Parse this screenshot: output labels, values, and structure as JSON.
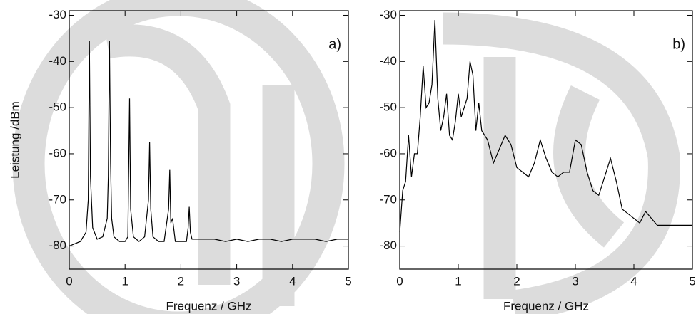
{
  "chart_data": [
    {
      "type": "line",
      "annotation": "a)",
      "xlabel": "Frequenz / GHz",
      "ylabel": "Leistung /dBm",
      "x": [
        0,
        0.1,
        0.2,
        0.3,
        0.34,
        0.36,
        0.38,
        0.42,
        0.5,
        0.6,
        0.68,
        0.7,
        0.72,
        0.74,
        0.76,
        0.8,
        0.9,
        1.0,
        1.05,
        1.08,
        1.1,
        1.15,
        1.25,
        1.35,
        1.42,
        1.44,
        1.46,
        1.5,
        1.6,
        1.7,
        1.78,
        1.8,
        1.82,
        1.85,
        1.9,
        2.0,
        2.1,
        2.13,
        2.15,
        2.17,
        2.2,
        2.4,
        2.6,
        2.8,
        3.0,
        3.2,
        3.4,
        3.6,
        3.8,
        4.0,
        4.2,
        4.4,
        4.6,
        4.8,
        5.0
      ],
      "series": [
        {
          "color": "#000000",
          "values": [
            -80,
            -79.5,
            -79,
            -77,
            -70,
            -35.5,
            -65,
            -76,
            -78.5,
            -78,
            -74,
            -65,
            -35.5,
            -62,
            -74,
            -78,
            -79,
            -79,
            -78,
            -48,
            -72,
            -78,
            -79,
            -78,
            -70,
            -57.5,
            -72,
            -78,
            -79,
            -79,
            -72,
            -63.5,
            -75,
            -74,
            -79,
            -79,
            -79,
            -76,
            -71.5,
            -77,
            -78.5,
            -78.5,
            -78.5,
            -79,
            -78.5,
            -79,
            -78.5,
            -78.5,
            -79,
            -78.5,
            -78.5,
            -78.5,
            -79,
            -78.5,
            -78.5
          ]
        }
      ],
      "xlim": [
        0,
        5
      ],
      "xticks": [
        0,
        1,
        2,
        3,
        4,
        5
      ],
      "ylim": [
        -85,
        -29
      ],
      "yticks": [
        -30,
        -40,
        -50,
        -60,
        -70,
        -80
      ]
    },
    {
      "type": "line",
      "annotation": "b)",
      "xlabel": "Frequenz / GHz",
      "x": [
        0,
        0.05,
        0.1,
        0.15,
        0.2,
        0.25,
        0.3,
        0.35,
        0.4,
        0.45,
        0.5,
        0.55,
        0.6,
        0.65,
        0.7,
        0.75,
        0.8,
        0.85,
        0.9,
        0.95,
        1.0,
        1.05,
        1.1,
        1.15,
        1.2,
        1.25,
        1.3,
        1.35,
        1.4,
        1.5,
        1.6,
        1.7,
        1.8,
        1.9,
        2.0,
        2.1,
        2.2,
        2.3,
        2.4,
        2.5,
        2.6,
        2.7,
        2.8,
        2.9,
        3.0,
        3.1,
        3.2,
        3.3,
        3.4,
        3.5,
        3.6,
        3.7,
        3.8,
        3.9,
        4.0,
        4.1,
        4.2,
        4.3,
        4.4,
        4.6,
        4.8,
        5.0
      ],
      "series": [
        {
          "color": "#000000",
          "values": [
            -77,
            -68,
            -66,
            -56,
            -65,
            -60,
            -60,
            -52,
            -41,
            -50,
            -49,
            -45,
            -31,
            -48,
            -55,
            -52,
            -47,
            -56,
            -57,
            -53,
            -47,
            -52,
            -50,
            -48,
            -40,
            -43,
            -55,
            -49,
            -55,
            -57,
            -62,
            -59,
            -56,
            -58,
            -63,
            -64,
            -65,
            -62,
            -57,
            -61,
            -64,
            -65,
            -64,
            -64,
            -57,
            -58,
            -64,
            -68,
            -69,
            -65,
            -61,
            -66,
            -72,
            -73,
            -74,
            -75,
            -72.5,
            -74,
            -75.5,
            -75.5,
            -75.5,
            -75.5
          ]
        }
      ],
      "xlim": [
        0,
        5
      ],
      "xticks": [
        0,
        1,
        2,
        3,
        4,
        5
      ],
      "ylim": [
        -85,
        -29
      ],
      "yticks": [
        -30,
        -40,
        -50,
        -60,
        -70,
        -80
      ]
    }
  ]
}
